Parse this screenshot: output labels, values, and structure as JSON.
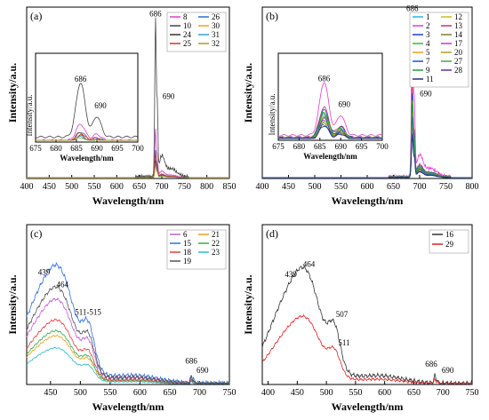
{
  "chart_data": [
    {
      "panel": "(a)",
      "type": "line",
      "xlabel": "Wavelength/nm",
      "ylabel": "Intensity/a.u.",
      "xlim": [
        400,
        850
      ],
      "xticks": [
        400,
        450,
        500,
        550,
        600,
        650,
        700,
        750,
        800,
        850
      ],
      "peaks": [
        {
          "x": 686,
          "label": "686"
        },
        {
          "x": 690,
          "label": "690"
        }
      ],
      "legend": [
        "8",
        "26",
        "10",
        "30",
        "24",
        "31",
        "25",
        "32"
      ],
      "legend_colors": [
        "#e040c8",
        "#2e6fd0",
        "#444444",
        "#f0a020",
        "#333333",
        "#30a0e0",
        "#d03030",
        "#a0a020"
      ],
      "series": [
        {
          "name": "8",
          "amp": 0.28,
          "color": "#e040c8"
        },
        {
          "name": "26",
          "amp": 0.16,
          "color": "#2e6fd0"
        },
        {
          "name": "10",
          "amp": 0.93,
          "color": "#444444"
        },
        {
          "name": "30",
          "amp": 0.12,
          "color": "#f0a020"
        },
        {
          "name": "24",
          "amp": 0.1,
          "color": "#333333"
        },
        {
          "name": "31",
          "amp": 0.08,
          "color": "#30a0e0"
        },
        {
          "name": "25",
          "amp": 0.14,
          "color": "#d03030"
        },
        {
          "name": "32",
          "amp": 0.07,
          "color": "#a0a020"
        }
      ],
      "inset": {
        "xlabel": "Wavelength/nm",
        "ylabel": "Intensity/a.u.",
        "xlim": [
          675,
          700
        ],
        "xticks": [
          675,
          680,
          685,
          690,
          695,
          700
        ],
        "peaks": [
          {
            "x": 686,
            "label": "686"
          },
          {
            "x": 690,
            "label": "690"
          }
        ]
      }
    },
    {
      "panel": "(b)",
      "type": "line",
      "xlabel": "Wavelength/nm",
      "ylabel": "Intensity/a.u.",
      "xlim": [
        400,
        800
      ],
      "xticks": [
        400,
        450,
        500,
        550,
        600,
        650,
        700,
        750,
        800
      ],
      "peaks": [
        {
          "x": 686,
          "label": "686"
        },
        {
          "x": 690,
          "label": "690"
        }
      ],
      "legend": [
        "1",
        "12",
        "2",
        "13",
        "3",
        "14",
        "4",
        "17",
        "5",
        "20",
        "7",
        "27",
        "9",
        "28",
        "11"
      ],
      "legend_colors": [
        "#20b8e0",
        "#c0c020",
        "#e040c8",
        "#d03070",
        "#2040c0",
        "#808020",
        "#30c030",
        "#c040c0",
        "#f0a020",
        "#b0a020",
        "#2050d0",
        "#50a050",
        "#20a040",
        "#6030a0",
        "#203080"
      ],
      "series": [
        {
          "name": "1",
          "amp": 0.42,
          "color": "#20b8e0"
        },
        {
          "name": "12",
          "amp": 0.3,
          "color": "#c0c020"
        },
        {
          "name": "2",
          "amp": 0.96,
          "color": "#e040c8"
        },
        {
          "name": "13",
          "amp": 0.55,
          "color": "#d03070"
        },
        {
          "name": "3",
          "amp": 0.5,
          "color": "#2040c0"
        },
        {
          "name": "14",
          "amp": 0.38,
          "color": "#808020"
        },
        {
          "name": "4",
          "amp": 0.46,
          "color": "#30c030"
        },
        {
          "name": "17",
          "amp": 0.34,
          "color": "#c040c0"
        },
        {
          "name": "5",
          "amp": 0.4,
          "color": "#f0a020"
        },
        {
          "name": "20",
          "amp": 0.32,
          "color": "#b0a020"
        },
        {
          "name": "7",
          "amp": 0.36,
          "color": "#2050d0"
        },
        {
          "name": "27",
          "amp": 0.28,
          "color": "#50a050"
        },
        {
          "name": "9",
          "amp": 0.44,
          "color": "#20a040"
        },
        {
          "name": "28",
          "amp": 0.26,
          "color": "#6030a0"
        },
        {
          "name": "11",
          "amp": 0.24,
          "color": "#203080"
        }
      ],
      "inset": {
        "xlabel": "Wavelength/nm",
        "ylabel": "Intensity/a.u.",
        "xlim": [
          675,
          700
        ],
        "xticks": [
          675,
          680,
          685,
          690,
          695,
          700
        ],
        "peaks": [
          {
            "x": 686,
            "label": "686"
          },
          {
            "x": 690,
            "label": "690"
          }
        ]
      }
    },
    {
      "panel": "(c)",
      "type": "line",
      "xlabel": "Wavelength/nm",
      "ylabel": "Intensity/a.u.",
      "xlim": [
        410,
        750
      ],
      "xticks": [
        450,
        500,
        550,
        600,
        650,
        700,
        750
      ],
      "peaks": [
        {
          "x": 439,
          "label": "439"
        },
        {
          "x": 464,
          "label": "464"
        },
        {
          "x": 513,
          "label": "511-515"
        },
        {
          "x": 686,
          "label": "686"
        },
        {
          "x": 690,
          "label": "690"
        }
      ],
      "legend": [
        "6",
        "21",
        "15",
        "22",
        "18",
        "23",
        "19"
      ],
      "legend_colors": [
        "#c060d0",
        "#f0a020",
        "#3070e0",
        "#30b050",
        "#e04040",
        "#30b8c8",
        "#555555"
      ],
      "series": [
        {
          "name": "6",
          "amp": 0.7,
          "color": "#c060d0"
        },
        {
          "name": "21",
          "amp": 0.4,
          "color": "#f0a020"
        },
        {
          "name": "15",
          "amp": 0.98,
          "color": "#3070e0"
        },
        {
          "name": "22",
          "amp": 0.44,
          "color": "#30b050"
        },
        {
          "name": "18",
          "amp": 0.53,
          "color": "#e04040"
        },
        {
          "name": "23",
          "amp": 0.3,
          "color": "#30b8c8"
        },
        {
          "name": "19",
          "amp": 0.8,
          "color": "#555555"
        }
      ]
    },
    {
      "panel": "(d)",
      "type": "line",
      "xlabel": "Wavelength/nm",
      "ylabel": "Intensity/a.u.",
      "xlim": [
        390,
        750
      ],
      "xticks": [
        400,
        450,
        500,
        550,
        600,
        650,
        700,
        750
      ],
      "peaks_16": [
        {
          "x": 439,
          "label": "439"
        },
        {
          "x": 464,
          "label": "464"
        },
        {
          "x": 507,
          "label": "507"
        }
      ],
      "peaks_29": [
        {
          "x": 511,
          "label": "511"
        }
      ],
      "peaks_chl": [
        {
          "x": 686,
          "label": "686"
        },
        {
          "x": 690,
          "label": "690"
        }
      ],
      "legend": [
        "16",
        "29"
      ],
      "legend_colors": [
        "#333333",
        "#e02020"
      ],
      "series": [
        {
          "name": "16",
          "amp": 0.96,
          "color": "#333333"
        },
        {
          "name": "29",
          "amp": 0.56,
          "color": "#e02020"
        }
      ]
    }
  ]
}
